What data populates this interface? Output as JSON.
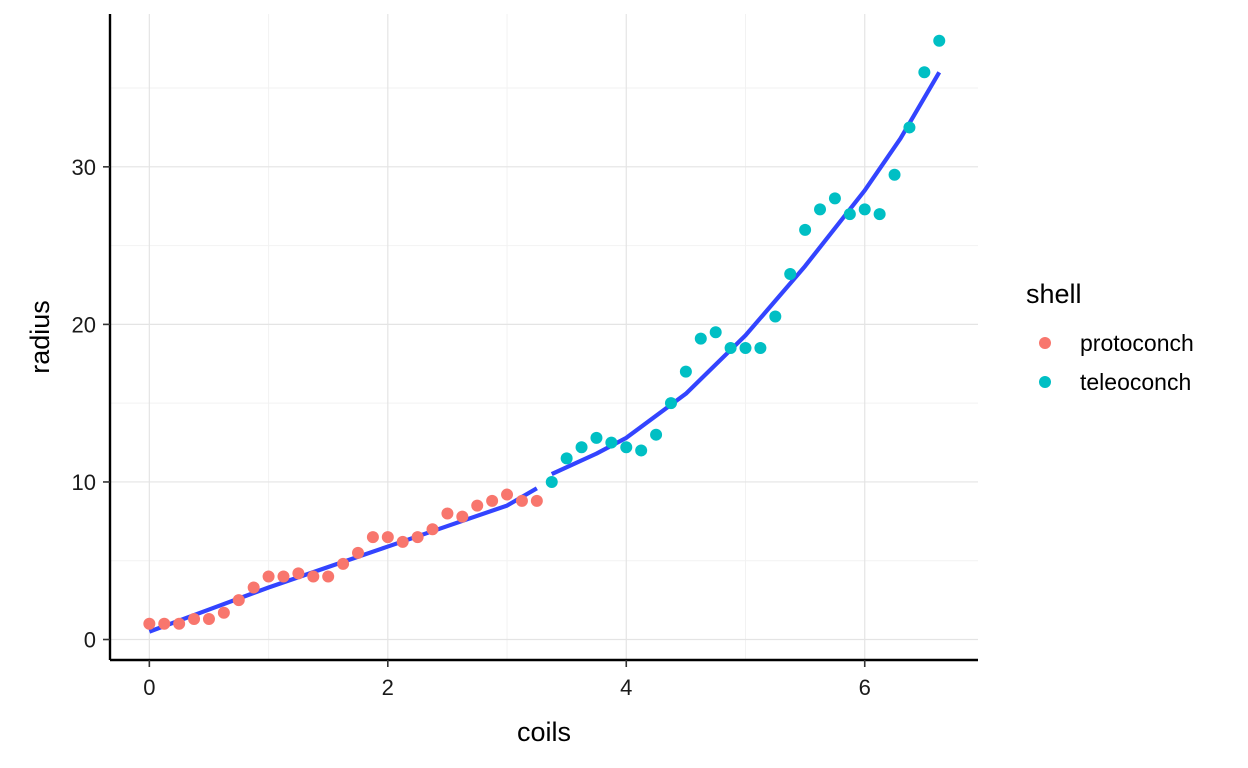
{
  "chart_data": {
    "type": "scatter",
    "xlabel": "coils",
    "ylabel": "radius",
    "xlim": [
      -0.33,
      6.95
    ],
    "ylim": [
      -1.3,
      39.7
    ],
    "x_ticks": [
      0,
      2,
      4,
      6
    ],
    "y_ticks": [
      0,
      10,
      20,
      30
    ],
    "grid": true,
    "legend": {
      "title": "shell",
      "placement": "right",
      "entries": [
        {
          "label": "protoconch",
          "color": "#F8766D"
        },
        {
          "label": "teleoconch",
          "color": "#00BFC4"
        }
      ]
    },
    "series": [
      {
        "name": "protoconch",
        "color": "#F8766D",
        "points": [
          [
            0.0,
            1.0
          ],
          [
            0.125,
            1.0
          ],
          [
            0.25,
            1.0
          ],
          [
            0.375,
            1.3
          ],
          [
            0.5,
            1.3
          ],
          [
            0.625,
            1.7
          ],
          [
            0.75,
            2.5
          ],
          [
            0.875,
            3.3
          ],
          [
            1.0,
            4.0
          ],
          [
            1.125,
            4.0
          ],
          [
            1.25,
            4.2
          ],
          [
            1.375,
            4.0
          ],
          [
            1.5,
            4.0
          ],
          [
            1.625,
            4.8
          ],
          [
            1.75,
            5.5
          ],
          [
            1.875,
            6.5
          ],
          [
            2.0,
            6.5
          ],
          [
            2.125,
            6.2
          ],
          [
            2.25,
            6.5
          ],
          [
            2.375,
            7.0
          ],
          [
            2.5,
            8.0
          ],
          [
            2.625,
            7.8
          ],
          [
            2.75,
            8.5
          ],
          [
            2.875,
            8.8
          ],
          [
            3.0,
            9.2
          ],
          [
            3.125,
            8.8
          ],
          [
            3.25,
            8.8
          ]
        ]
      },
      {
        "name": "teleoconch",
        "color": "#00BFC4",
        "points": [
          [
            3.375,
            10.0
          ],
          [
            3.5,
            11.5
          ],
          [
            3.625,
            12.2
          ],
          [
            3.75,
            12.8
          ],
          [
            3.875,
            12.5
          ],
          [
            4.0,
            12.2
          ],
          [
            4.125,
            12.0
          ],
          [
            4.25,
            13.0
          ],
          [
            4.375,
            15.0
          ],
          [
            4.5,
            17.0
          ],
          [
            4.625,
            19.1
          ],
          [
            4.75,
            19.5
          ],
          [
            4.875,
            18.5
          ],
          [
            5.0,
            18.5
          ],
          [
            5.125,
            18.5
          ],
          [
            5.25,
            20.5
          ],
          [
            5.375,
            23.2
          ],
          [
            5.5,
            26.0
          ],
          [
            5.625,
            27.3
          ],
          [
            5.75,
            28.0
          ],
          [
            5.875,
            27.0
          ],
          [
            6.0,
            27.3
          ],
          [
            6.125,
            27.0
          ],
          [
            6.25,
            29.5
          ],
          [
            6.375,
            32.5
          ],
          [
            6.5,
            36.0
          ],
          [
            6.625,
            38.0
          ]
        ]
      }
    ],
    "fit_lines": [
      {
        "color": "#3344FF",
        "points": [
          [
            0.0,
            0.5
          ],
          [
            0.5,
            1.9
          ],
          [
            1.0,
            3.3
          ],
          [
            1.5,
            4.6
          ],
          [
            2.0,
            5.9
          ],
          [
            2.5,
            7.2
          ],
          [
            3.0,
            8.5
          ],
          [
            3.25,
            9.6
          ]
        ]
      },
      {
        "color": "#3344FF",
        "points": [
          [
            3.375,
            10.5
          ],
          [
            3.75,
            11.8
          ],
          [
            4.0,
            12.8
          ],
          [
            4.5,
            15.6
          ],
          [
            5.0,
            19.3
          ],
          [
            5.5,
            23.7
          ],
          [
            6.0,
            28.5
          ],
          [
            6.3,
            31.8
          ],
          [
            6.625,
            36.0
          ]
        ]
      }
    ]
  }
}
